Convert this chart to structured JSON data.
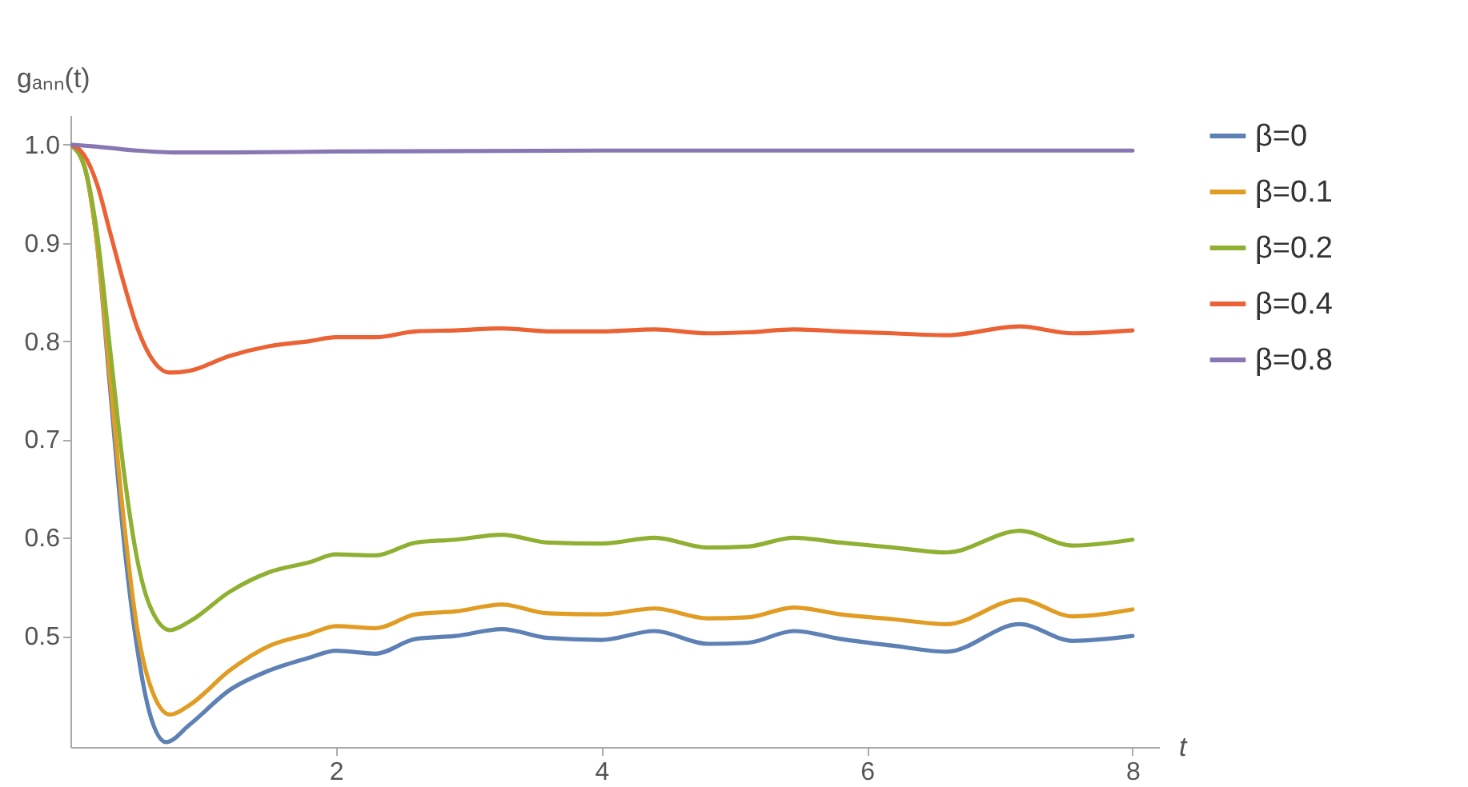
{
  "chart_data": {
    "type": "line",
    "ylabel": "gₐₙₙ(t)",
    "xlabel": "t",
    "xlim": [
      0,
      8.2
    ],
    "xticks": [
      2,
      4,
      6,
      8
    ],
    "ylim": [
      0.387,
      1.03
    ],
    "yticks": [
      0.5,
      0.6,
      0.7,
      0.8,
      0.9,
      {
        "value": 1,
        "label": "1.0"
      }
    ],
    "grid": false,
    "legend": "right",
    "marker": "none",
    "line_style": "solid",
    "series": [
      {
        "name": "β=0",
        "color": "#5e81b5",
        "x": [
          0,
          0.1,
          0.2,
          0.3,
          0.4,
          0.5,
          0.6,
          0.72,
          0.9,
          1.2,
          1.5,
          1.8,
          2.0,
          2.3,
          2.6,
          2.9,
          3.25,
          3.6,
          4.0,
          4.4,
          4.8,
          5.1,
          5.45,
          5.8,
          6.2,
          6.6,
          7.15,
          7.55,
          8
        ],
        "values": [
          1.0,
          0.98,
          0.9,
          0.75,
          0.6,
          0.49,
          0.42,
          0.392,
          0.41,
          0.445,
          0.465,
          0.478,
          0.485,
          0.482,
          0.497,
          0.5,
          0.507,
          0.498,
          0.496,
          0.505,
          0.492,
          0.493,
          0.505,
          0.497,
          0.49,
          0.484,
          0.512,
          0.495,
          0.5
        ]
      },
      {
        "name": "β=0.1",
        "color": "#e19c24",
        "x": [
          0,
          0.1,
          0.2,
          0.3,
          0.4,
          0.5,
          0.6,
          0.75,
          0.9,
          1.2,
          1.5,
          1.8,
          2.0,
          2.3,
          2.6,
          2.9,
          3.25,
          3.6,
          4.0,
          4.4,
          4.8,
          5.1,
          5.45,
          5.8,
          6.2,
          6.6,
          7.15,
          7.55,
          8
        ],
        "values": [
          1.0,
          0.98,
          0.9,
          0.76,
          0.62,
          0.51,
          0.45,
          0.42,
          0.43,
          0.465,
          0.49,
          0.502,
          0.51,
          0.508,
          0.522,
          0.525,
          0.532,
          0.523,
          0.522,
          0.528,
          0.518,
          0.519,
          0.529,
          0.522,
          0.517,
          0.512,
          0.537,
          0.52,
          0.527
        ]
      },
      {
        "name": "β=0.2",
        "color": "#8fb032",
        "x": [
          0,
          0.1,
          0.2,
          0.3,
          0.4,
          0.5,
          0.6,
          0.75,
          0.9,
          1.2,
          1.5,
          1.8,
          2.0,
          2.3,
          2.6,
          2.9,
          3.25,
          3.6,
          4.0,
          4.4,
          4.8,
          5.1,
          5.45,
          5.8,
          6.2,
          6.6,
          7.15,
          7.55,
          8
        ],
        "values": [
          1.0,
          0.98,
          0.91,
          0.79,
          0.67,
          0.58,
          0.53,
          0.506,
          0.515,
          0.545,
          0.565,
          0.575,
          0.583,
          0.582,
          0.595,
          0.598,
          0.603,
          0.595,
          0.594,
          0.6,
          0.59,
          0.591,
          0.6,
          0.595,
          0.59,
          0.585,
          0.607,
          0.592,
          0.598
        ]
      },
      {
        "name": "β=0.4",
        "color": "#eb6235",
        "x": [
          0,
          0.1,
          0.2,
          0.3,
          0.4,
          0.5,
          0.6,
          0.75,
          0.9,
          1.2,
          1.5,
          1.8,
          2.0,
          2.3,
          2.6,
          2.9,
          3.25,
          3.6,
          4.0,
          4.4,
          4.8,
          5.1,
          5.45,
          5.8,
          6.2,
          6.6,
          7.15,
          7.55,
          8
        ],
        "values": [
          1.0,
          0.99,
          0.96,
          0.91,
          0.86,
          0.815,
          0.785,
          0.768,
          0.77,
          0.785,
          0.795,
          0.8,
          0.804,
          0.804,
          0.81,
          0.811,
          0.813,
          0.81,
          0.81,
          0.812,
          0.808,
          0.809,
          0.812,
          0.81,
          0.808,
          0.806,
          0.815,
          0.808,
          0.811
        ]
      },
      {
        "name": "β=0.8",
        "color": "#8778b3",
        "x": [
          0,
          0.2,
          0.5,
          0.8,
          1.2,
          2,
          4,
          8
        ],
        "values": [
          1.0,
          0.998,
          0.994,
          0.992,
          0.992,
          0.993,
          0.994,
          0.994
        ]
      }
    ]
  }
}
